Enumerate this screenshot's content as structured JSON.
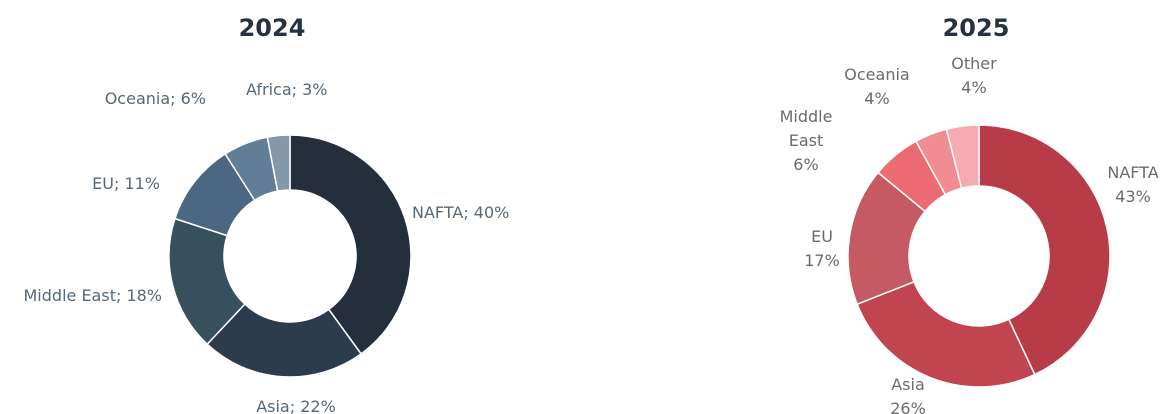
{
  "chart_data": [
    {
      "type": "pie",
      "title": "2024",
      "label_style": "inline",
      "label_color": "#556877",
      "categories": [
        "NAFTA",
        "Asia",
        "Middle East",
        "EU",
        "Oceania",
        "Africa"
      ],
      "values": [
        40,
        22,
        18,
        11,
        6,
        3
      ],
      "labels": [
        "NAFTA; 40%",
        "Asia; 22%",
        "Middle East; 18%",
        "EU; 11%",
        "Oceania; 6%",
        "Africa; 3%"
      ],
      "colors": [
        "#242f3b",
        "#2c3c4c",
        "#36505e",
        "#4c6781",
        "#627e96",
        "#8498aa"
      ]
    },
    {
      "type": "pie",
      "title": "2025",
      "label_style": "stacked",
      "label_color": "#6b6b6b",
      "categories": [
        "NAFTA",
        "Asia",
        "EU",
        "Middle East",
        "Oceania",
        "Other"
      ],
      "values": [
        43,
        26,
        17,
        6,
        4,
        4
      ],
      "labels": [
        [
          "NAFTA",
          "43%"
        ],
        [
          "Asia",
          "26%"
        ],
        [
          "EU",
          "17%"
        ],
        [
          "Middle",
          "East",
          "6%"
        ],
        [
          "Oceania",
          "4%"
        ],
        [
          "Other",
          "4%"
        ]
      ],
      "colors": [
        "#b73c48",
        "#c04550",
        "#c65a62",
        "#ec6b73",
        "#f08c92",
        "#f5abaf"
      ]
    }
  ]
}
